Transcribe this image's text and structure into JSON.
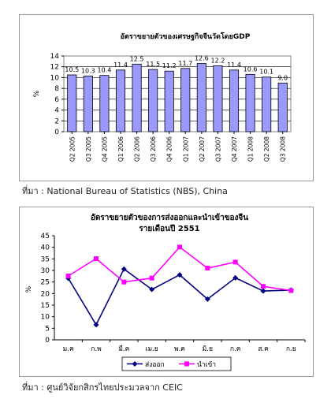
{
  "chart_data": [
    {
      "type": "bar",
      "title": "อัตราขยายตัวของเศรษฐกิจจีนวัดโดยGDP",
      "ylabel": "%",
      "xlabel": "",
      "ylim": [
        0,
        14
      ],
      "yticks": [
        "0",
        "2",
        "4",
        "6",
        "8",
        "10",
        "12",
        "14"
      ],
      "grid": true,
      "bar_color": "#9999ff",
      "categories": [
        "Q2 2005",
        "Q3 2005",
        "Q4 2005",
        "Q1 2006",
        "Q2 2006",
        "Q3 2006",
        "Q4 2006",
        "Q1 2007",
        "Q2 2007",
        "Q3 2007",
        "Q4 2007",
        "Q1 2008",
        "Q2 2008",
        "Q3 2008"
      ],
      "values": [
        10.5,
        10.3,
        10.4,
        11.4,
        12.5,
        11.5,
        11.2,
        11.7,
        12.6,
        12.2,
        11.4,
        10.6,
        10.1,
        9.0
      ],
      "data_labels": [
        "10.5",
        "10.3",
        "10.4",
        "11.4",
        "12.5",
        "11.5",
        "11.2",
        "11.7",
        "12.6",
        "12.2",
        "11.4",
        "10.6",
        "10.1",
        "9.0"
      ]
    },
    {
      "type": "line",
      "title_line1": "อัตราขยายตัวของการส่งออกและนำเข้าของจีน",
      "title_line2": "รายเดือนปี 2551",
      "ylabel": "%",
      "xlabel": "",
      "ylim": [
        0,
        45
      ],
      "yticks": [
        "0",
        "5",
        "10",
        "15",
        "20",
        "25",
        "30",
        "35",
        "40",
        "45"
      ],
      "grid": false,
      "legend_position": "bottom",
      "categories": [
        "ม.ค",
        "ก.พ",
        "มี.ค",
        "เม.ย",
        "พ.ค",
        "มิ.ย",
        "ก.ค",
        "ส.ค",
        "ก.ย"
      ],
      "series": [
        {
          "name": "ส่งออก",
          "color": "#000080",
          "marker": "diamond",
          "values": [
            26.6,
            6.5,
            30.6,
            21.8,
            28.1,
            17.6,
            26.8,
            21.1,
            21.5
          ]
        },
        {
          "name": "นำเข้า",
          "color": "#ff00ff",
          "marker": "square",
          "values": [
            27.6,
            35.1,
            25.0,
            26.7,
            40.1,
            31.0,
            33.6,
            23.1,
            21.3
          ]
        }
      ]
    }
  ],
  "sources": {
    "source1": "ที่มา : National Bureau of Statistics (NBS), China",
    "source2": "ที่มา : ศูนย์วิจัยกสิกรไทยประมวลจาก CEIC"
  }
}
